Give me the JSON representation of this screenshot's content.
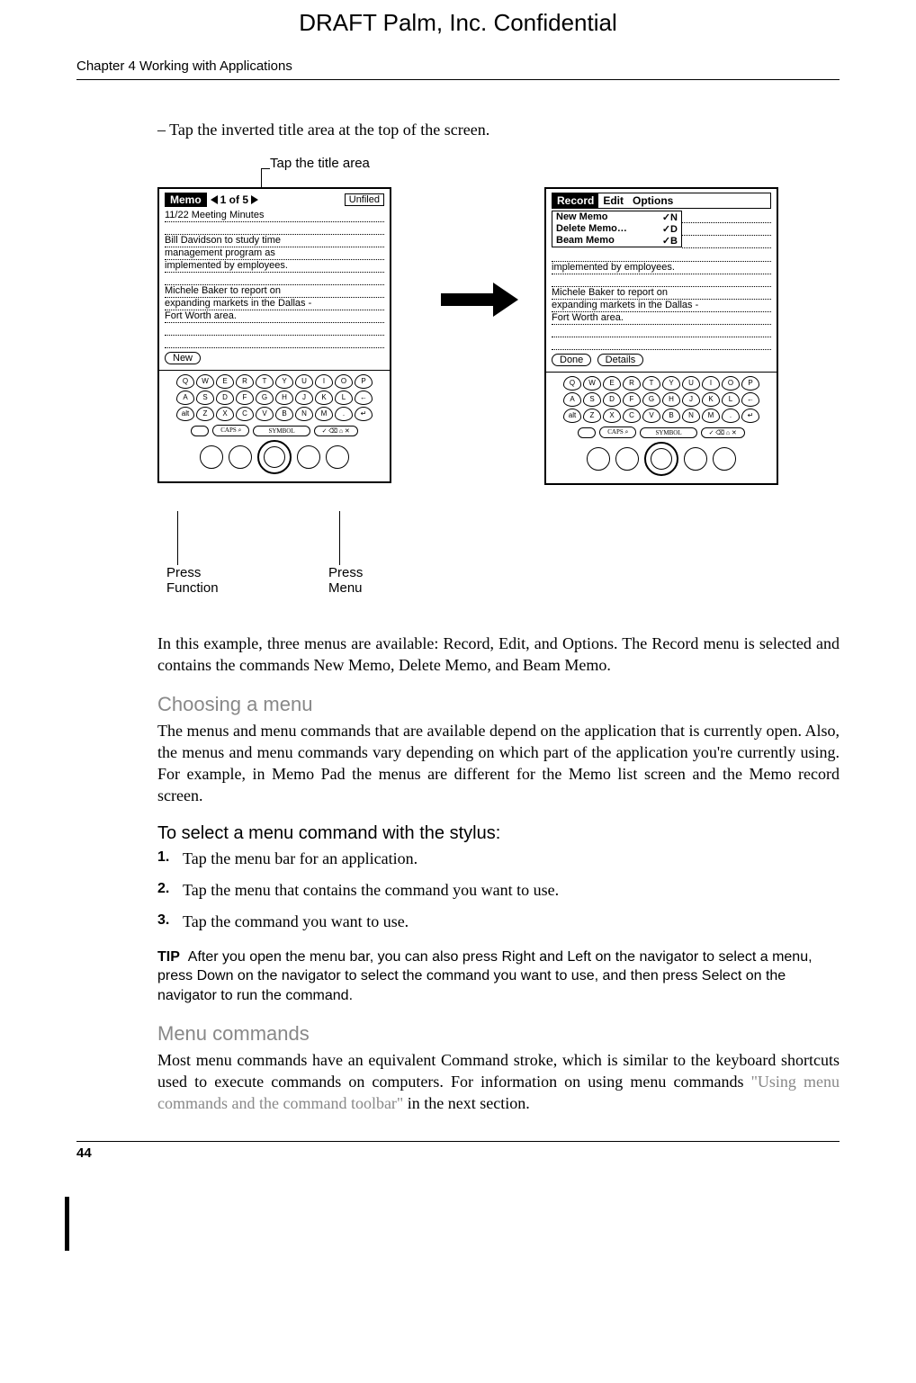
{
  "watermark": "DRAFT   Palm, Inc. Confidential",
  "chapter_header": "Chapter 4    Working with Applications",
  "bullet_line": "–   Tap the inverted title area at the top of the screen.",
  "figure": {
    "callout_top": "Tap the title area",
    "callout_bl1": "Press",
    "callout_bl2": "Function",
    "callout_br1": "Press",
    "callout_br2": "Menu",
    "left_screen": {
      "app": "Memo",
      "nav": "1 of 5",
      "category": "Unfiled",
      "line1": "11/22 Meeting Minutes",
      "line2": "Bill Davidson to study time",
      "line3": "management program as",
      "line4": "implemented by employees.",
      "line5": "Michele Baker to report on",
      "line6": "expanding markets in the Dallas -",
      "line7": "Fort Worth area.",
      "btn_new": "New"
    },
    "right_screen": {
      "menu1": "Record",
      "menu2": "Edit",
      "menu3": "Options",
      "cmd1": "New Memo",
      "sc1": "✓N",
      "cmd2": "Delete Memo…",
      "sc2": "✓D",
      "cmd3": "Beam Memo",
      "sc3": "✓B",
      "line4": "implemented by employees.",
      "line5": "Michele Baker to report on",
      "line6": "expanding markets in the Dallas -",
      "line7": "Fort Worth area.",
      "btn_done": "Done",
      "btn_details": "Details"
    },
    "keypad": {
      "row1": [
        "Q",
        "W",
        "E",
        "R",
        "T",
        "Y",
        "U",
        "I",
        "O",
        "P"
      ],
      "row2": [
        "A",
        "S",
        "D",
        "F",
        "G",
        "H",
        "J",
        "K",
        "L",
        "←"
      ],
      "row3": [
        "alt",
        "Z",
        "X",
        "C",
        "V",
        "B",
        "N",
        "M",
        ".",
        "↵"
      ],
      "bar_caps": "CAPS ⌕",
      "bar_symbol": "SYMBOL",
      "bar_right": "✓ ⌫   ⌂  ✕"
    }
  },
  "para1": "In this example, three menus are available: Record, Edit, and Options. The Record menu is selected and contains the commands New Memo, Delete Memo, and Beam Memo.",
  "h_choosing": "Choosing a menu",
  "para2": "The menus and menu commands that are available depend on the application that is currently open. Also, the menus and menu commands vary depending on which part of the application you're currently using. For example, in Memo Pad the menus are different for the Memo list screen and the Memo record screen.",
  "h_select": "To select a menu command with the stylus:",
  "steps": {
    "n1": "1.",
    "t1": "Tap the menu bar for an application.",
    "n2": "2.",
    "t2": "Tap the menu that contains the command you want to use.",
    "n3": "3.",
    "t3": "Tap the command you want to use."
  },
  "tip_label": "TIP",
  "tip_text": "After you open the menu bar, you can also press Right and Left on the navigator to select a menu, press Down on the navigator to select the command you want to use, and then press Select on the navigator to run the command.",
  "h_menucmd": "Menu commands",
  "para3a": "Most menu commands have an equivalent Command stroke, which is similar to the keyboard shortcuts used to execute commands on computers. For information on using menu commands ",
  "para3_xref": "\"Using menu commands and the command toolbar\"",
  "para3b": " in the next section.",
  "page_number": "44"
}
